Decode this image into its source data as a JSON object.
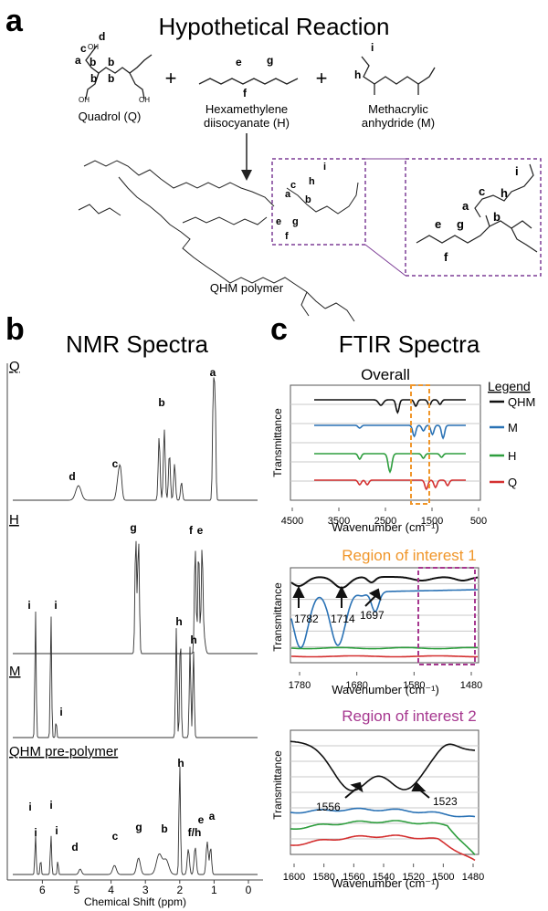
{
  "panel_a": {
    "letter": "a",
    "title": "Hypothetical Reaction",
    "reactants": [
      {
        "name": "Quadrol (Q)",
        "atom_labels": [
          "a",
          "b",
          "c",
          "d",
          "b",
          "b",
          "b"
        ],
        "groups": [
          "OH",
          "OH",
          "OH"
        ]
      },
      {
        "name_line1": "Hexamethylene",
        "name_line2": "diisocyanate (H)",
        "atom_labels": [
          "e",
          "g",
          "f"
        ]
      },
      {
        "name_line1": "Methacrylic",
        "name_line2": "anhydride (M)",
        "atom_labels": [
          "i",
          "h"
        ]
      }
    ],
    "plus": "+",
    "product": "QHM polymer",
    "product_labels": [
      "a",
      "b",
      "c",
      "e",
      "f",
      "g",
      "h",
      "i"
    ]
  },
  "panel_b": {
    "letter": "b",
    "title": "NMR Spectra",
    "traces": [
      {
        "name": "Q",
        "peaks": [
          "d",
          "c",
          "b",
          "a"
        ]
      },
      {
        "name": "H",
        "peaks": [
          "g",
          "f",
          "e"
        ]
      },
      {
        "name": "M",
        "peaks": [
          "i",
          "i",
          "i",
          "h",
          "h"
        ]
      },
      {
        "name": "QHM pre-polymer",
        "peaks": [
          "i",
          "i",
          "i",
          "i",
          "d",
          "c",
          "g",
          "b",
          "h",
          "f/h",
          "e",
          "a"
        ]
      }
    ],
    "x_axis": {
      "label": "Chemical Shift (ppm)",
      "ticks": [
        "6",
        "5",
        "4",
        "3",
        "2",
        "1",
        "0"
      ]
    }
  },
  "panel_c": {
    "letter": "c",
    "title": "FTIR Spectra"
  },
  "colors": {
    "QHM": "#111111",
    "M": "#2a72b5",
    "H": "#2e9e3e",
    "Q": "#d43030",
    "roi1": "#f0962a",
    "roi2": "#a6378f"
  },
  "chart_data": [
    {
      "type": "line",
      "title": "Overall",
      "xlabel": "Wavenumber (cm⁻¹)",
      "ylabel": "Transmittance",
      "xlim": [
        4500,
        500
      ],
      "x_ticks": [
        "4500",
        "3500",
        "2500",
        "1500",
        "500"
      ],
      "legend_title": "Legend",
      "legend_position": "right",
      "series": [
        {
          "name": "QHM",
          "color": "#111111"
        },
        {
          "name": "M",
          "color": "#2a72b5"
        },
        {
          "name": "H",
          "color": "#2e9e3e"
        },
        {
          "name": "Q",
          "color": "#d43030"
        }
      ],
      "highlight_region": [
        1800,
        1480
      ]
    },
    {
      "type": "line",
      "title": "Region of interest 1",
      "xlabel": "Wavenumber (cm⁻¹)",
      "ylabel": "Transmittance",
      "xlim": [
        1800,
        1480
      ],
      "x_ticks": [
        "1780",
        "1680",
        "1580",
        "1480"
      ],
      "annotations": [
        "1782",
        "1714",
        "1697"
      ],
      "highlight_region": [
        1600,
        1480
      ]
    },
    {
      "type": "line",
      "title": "Region of interest 2",
      "xlabel": "Wavenumber (cm⁻¹)",
      "ylabel": "Transmittance",
      "xlim": [
        1600,
        1480
      ],
      "x_ticks": [
        "1600",
        "1580",
        "1560",
        "1540",
        "1520",
        "1500",
        "1480"
      ],
      "annotations": [
        "1556",
        "1523"
      ]
    }
  ]
}
